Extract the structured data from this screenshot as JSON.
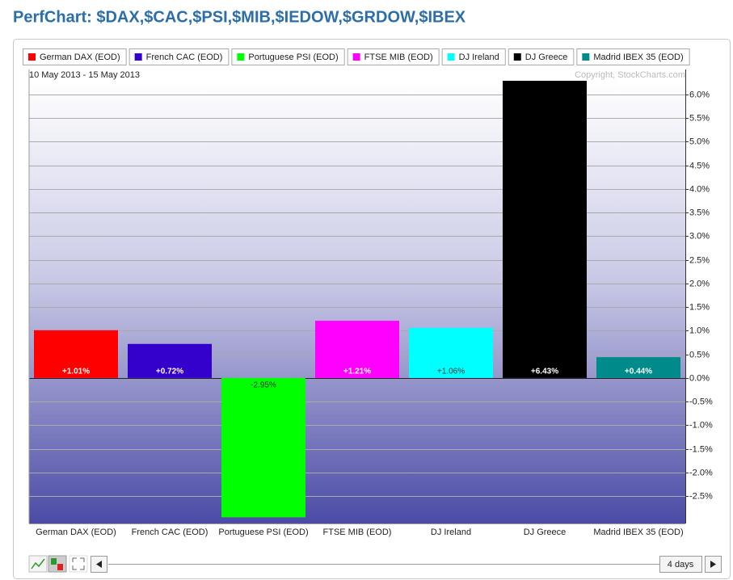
{
  "chart_data": {
    "type": "bar",
    "title": "PerfChart: $DAX,$CAC,$PSI,$MIB,$IEDOW,$GRDOW,$IBEX",
    "subtitle": "10 May 2013 - 15 May 2013",
    "note": "Copyright, StockCharts.com",
    "legend": [
      "German DAX (EOD)",
      "French CAC (EOD)",
      "Portuguese PSI (EOD)",
      "FTSE MIB (EOD)",
      "DJ Ireland",
      "DJ Greece",
      "Madrid IBEX 35 (EOD)"
    ],
    "categories": [
      "German DAX (EOD)",
      "French CAC (EOD)",
      "Portuguese PSI (EOD)",
      "FTSE MIB (EOD)",
      "DJ Ireland",
      "DJ Greece",
      "Madrid IBEX 35 (EOD)"
    ],
    "values": [
      1.01,
      0.72,
      -2.95,
      1.21,
      1.06,
      6.43,
      0.44
    ],
    "value_labels": [
      "+1.01%",
      "+0.72%",
      "-2.95%",
      "+1.21%",
      "+1.06%",
      "+6.43%",
      "+0.44%"
    ],
    "colors": [
      "#ff0000",
      "#3300cc",
      "#00ff00",
      "#ff00ff",
      "#00ffff",
      "#000000",
      "#008b8b"
    ],
    "ylim": [
      -3.08,
      6.29
    ],
    "yticks": [
      {
        "value": -2.5,
        "label": "-2.5%"
      },
      {
        "value": -2,
        "label": "-2.0%"
      },
      {
        "value": -1.5,
        "label": "-1.5%"
      },
      {
        "value": -1,
        "label": "-1.0%"
      },
      {
        "value": -0.5,
        "label": "-0.5%"
      },
      {
        "value": 0,
        "label": "0.0%"
      },
      {
        "value": 0.5,
        "label": "0.5%"
      },
      {
        "value": 1,
        "label": "1.0%"
      },
      {
        "value": 1.5,
        "label": "1.5%"
      },
      {
        "value": 2,
        "label": "2.0%"
      },
      {
        "value": 2.5,
        "label": "2.5%"
      },
      {
        "value": 3,
        "label": "3.0%"
      },
      {
        "value": 3.5,
        "label": "3.5%"
      },
      {
        "value": 4,
        "label": "4.0%"
      },
      {
        "value": 4.5,
        "label": "4.5%"
      },
      {
        "value": 5,
        "label": "5.0%"
      },
      {
        "value": 5.5,
        "label": "5.5%"
      },
      {
        "value": 6,
        "label": "6.0%"
      }
    ],
    "grid": true
  },
  "controls": {
    "period": "4 days"
  }
}
